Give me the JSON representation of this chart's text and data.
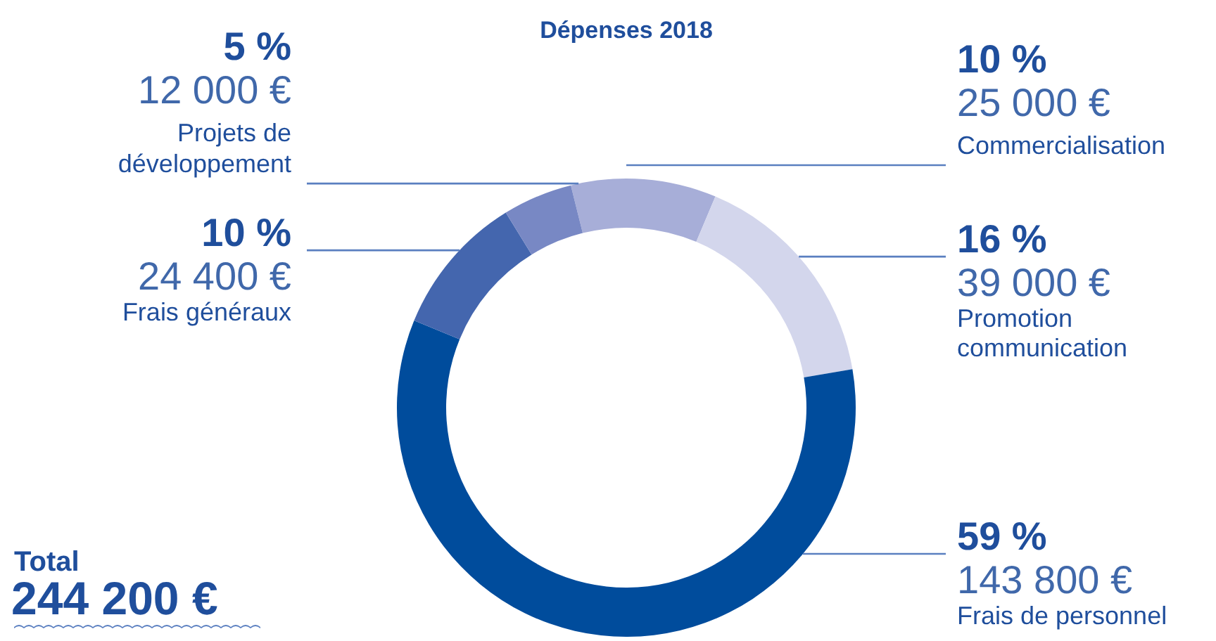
{
  "chart_data": {
    "type": "donut",
    "title": "Dépenses 2018",
    "categories": [
      "Commercialisation",
      "Promotion communication",
      "Frais de personnel",
      "Frais généraux",
      "Projets de développement"
    ],
    "values": [
      25000,
      39000,
      143800,
      24400,
      12000
    ],
    "colors": [
      "#a7aed8",
      "#d3d6ec",
      "#004c9c",
      "#4466ae",
      "#7888c4"
    ],
    "value_labels": [
      "10 %\n25 000 €",
      "16 %\n39 000 €",
      "59 %\n143 800 €",
      "10 %\n24 400 €",
      "5 %\n12 000 €"
    ],
    "annotations": [
      "Total",
      "244 200 €"
    ],
    "legend": false
  }
}
